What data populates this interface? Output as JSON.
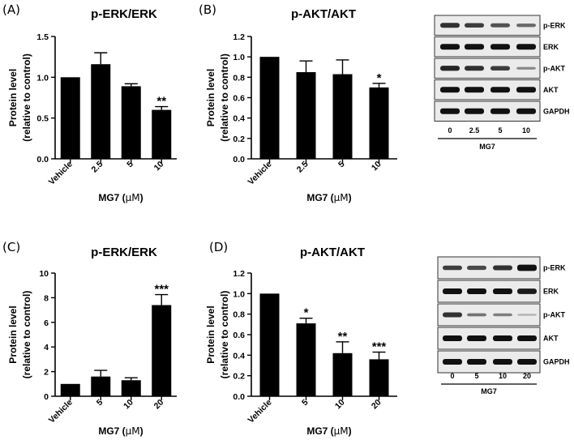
{
  "panels": [
    {
      "letter": "(A)",
      "title": "p-ERK/ERK"
    },
    {
      "letter": "(B)",
      "title": "p-AKT/AKT"
    },
    {
      "letter": "(C)",
      "title": "p-ERK/ERK"
    },
    {
      "letter": "(D)",
      "title": "p-AKT/AKT"
    }
  ],
  "blots": [
    {
      "bands": [
        "p-ERK",
        "ERK",
        "p-AKT",
        "AKT",
        "GAPDH"
      ],
      "lanes": [
        "0",
        "2.5",
        "5",
        "10"
      ],
      "treatment": "MG7"
    },
    {
      "bands": [
        "p-ERK",
        "ERK",
        "p-AKT",
        "AKT",
        "GAPDH"
      ],
      "lanes": [
        "0",
        "5",
        "10",
        "20"
      ],
      "treatment": "MG7"
    }
  ],
  "chart_data": [
    {
      "type": "bar",
      "panel": "(A)",
      "title": "p-ERK/ERK",
      "categories": [
        "Vehicle",
        "2.5",
        "5",
        "10"
      ],
      "values": [
        1.0,
        1.16,
        0.89,
        0.6
      ],
      "errors": [
        0,
        0.14,
        0.03,
        0.04
      ],
      "significance": [
        "",
        "",
        "",
        "**"
      ],
      "ylim": [
        0,
        1.5
      ],
      "yticks": [
        "0.0",
        "0.5",
        "1.0",
        "1.5"
      ],
      "ylabel_line1": "Protein level",
      "ylabel_line2": "(relative to control)",
      "xlabel_prefix": "MG7 (",
      "xlabel_unit": "μM",
      "xlabel_suffix": ")"
    },
    {
      "type": "bar",
      "panel": "(B)",
      "title": "p-AKT/AKT",
      "categories": [
        "Vehicle",
        "2.5",
        "5",
        "10"
      ],
      "values": [
        1.0,
        0.85,
        0.83,
        0.7
      ],
      "errors": [
        0,
        0.11,
        0.14,
        0.04
      ],
      "significance": [
        "",
        "",
        "",
        "*"
      ],
      "ylim": [
        0,
        1.2
      ],
      "yticks": [
        "0.0",
        "0.2",
        "0.4",
        "0.6",
        "0.8",
        "1.0",
        "1.2"
      ],
      "ylabel_line1": "Protein level",
      "ylabel_line2": "(relative to control)",
      "xlabel_prefix": "MG7 (",
      "xlabel_unit": "μM",
      "xlabel_suffix": ")"
    },
    {
      "type": "bar",
      "panel": "(C)",
      "title": "p-ERK/ERK",
      "categories": [
        "Vehicle",
        "5",
        "10",
        "20"
      ],
      "values": [
        1.0,
        1.6,
        1.3,
        7.4
      ],
      "errors": [
        0,
        0.5,
        0.2,
        0.85
      ],
      "significance": [
        "",
        "",
        "",
        "***"
      ],
      "ylim": [
        0,
        10
      ],
      "yticks": [
        "0",
        "2",
        "4",
        "6",
        "8",
        "10"
      ],
      "ylabel_line1": "Protein level",
      "ylabel_line2": "(relative to control)",
      "xlabel_prefix": "MG7 (",
      "xlabel_unit": "μM",
      "xlabel_suffix": ")"
    },
    {
      "type": "bar",
      "panel": "(D)",
      "title": "p-AKT/AKT",
      "categories": [
        "Vehicle",
        "5",
        "10",
        "20"
      ],
      "values": [
        1.0,
        0.71,
        0.42,
        0.36
      ],
      "errors": [
        0,
        0.05,
        0.11,
        0.07
      ],
      "significance": [
        "",
        "*",
        "**",
        "***"
      ],
      "ylim": [
        0,
        1.2
      ],
      "yticks": [
        "0.0",
        "0.2",
        "0.4",
        "0.6",
        "0.8",
        "1.0",
        "1.2"
      ],
      "ylabel_line1": "Protein level",
      "ylabel_line2": "(relative to control)",
      "xlabel_prefix": "MG7 (",
      "xlabel_unit": "μM",
      "xlabel_suffix": ")"
    }
  ]
}
